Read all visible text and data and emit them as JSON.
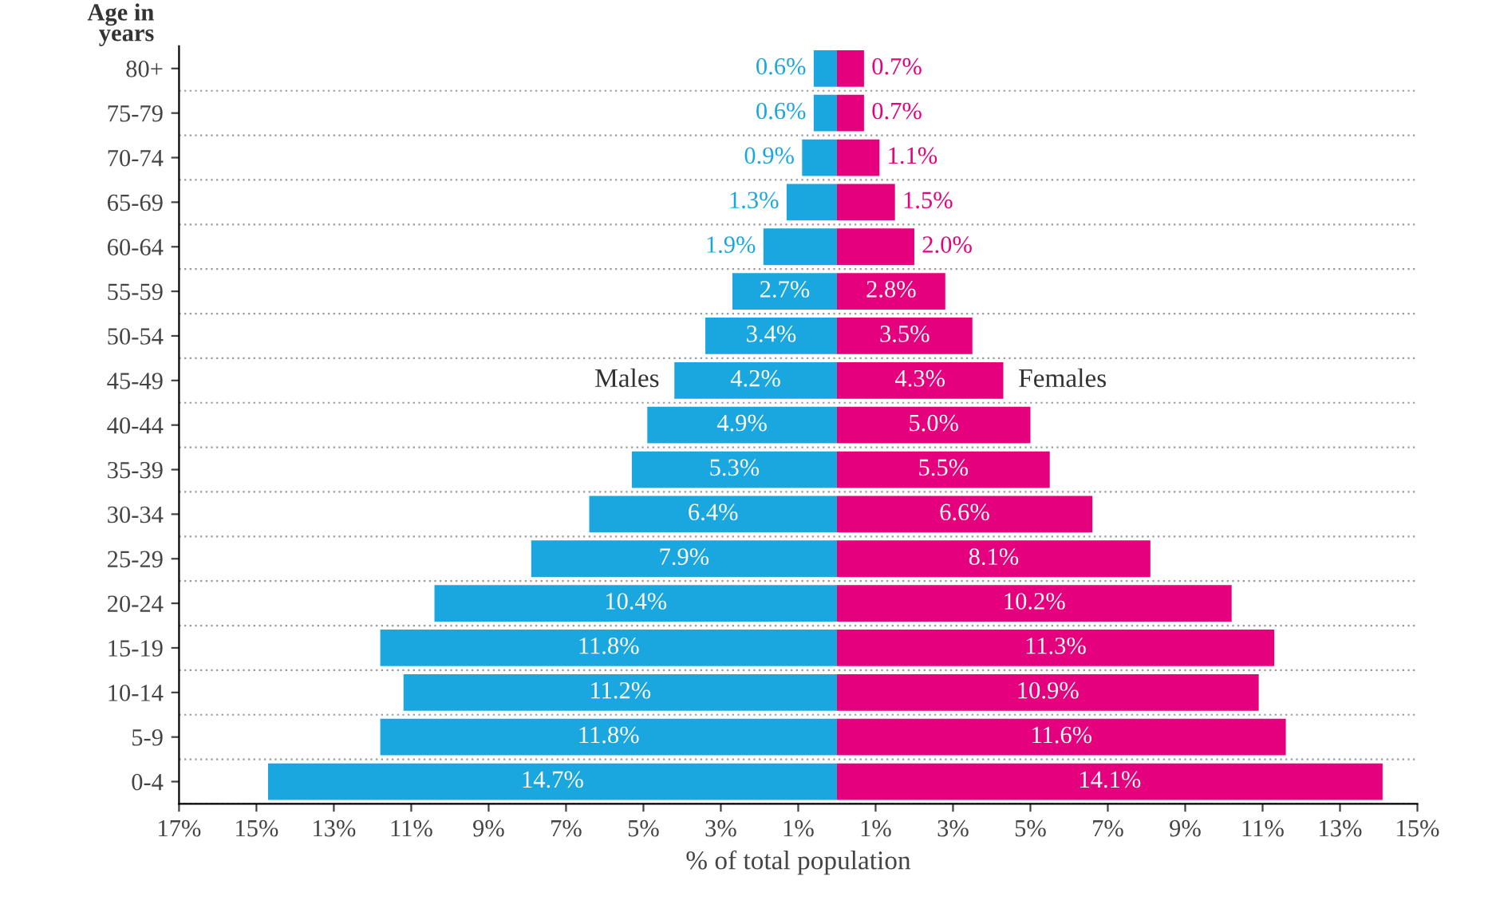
{
  "chart_data": {
    "type": "bar",
    "orientation": "horizontal",
    "ylabel": "Age in\nyears",
    "xlabel": "% of total population",
    "categories": [
      "80+",
      "75-79",
      "70-74",
      "65-69",
      "60-64",
      "55-59",
      "50-54",
      "45-49",
      "40-44",
      "35-39",
      "30-34",
      "25-29",
      "20-24",
      "15-19",
      "10-14",
      "5-9",
      "0-4"
    ],
    "series": [
      {
        "name": "Males",
        "color": "#1aa7e0",
        "values": [
          0.6,
          0.6,
          0.9,
          1.3,
          1.9,
          2.7,
          3.4,
          4.2,
          4.9,
          5.3,
          6.4,
          7.9,
          10.4,
          11.8,
          11.2,
          11.8,
          14.7
        ],
        "base": [
          -0.6,
          -0.6,
          -0.9,
          -1.3,
          -1.9,
          -2.7,
          -3.4,
          -4.2,
          -4.9,
          -5.3,
          -6.4,
          -7.9,
          -10.4,
          -11.8,
          -11.2,
          -11.8,
          -14.7
        ],
        "value_labels": [
          "0.6%",
          "0.6%",
          "0.9%",
          "1.3%",
          "1.9%",
          "2.7%",
          "3.4%",
          "4.2%",
          "4.9%",
          "5.3%",
          "6.4%",
          "7.9%",
          "10.4%",
          "11.8%",
          "11.2%",
          "11.8%",
          "14.7%"
        ]
      },
      {
        "name": "Females",
        "color": "#e5007d",
        "values": [
          0.7,
          0.7,
          1.1,
          1.5,
          2.0,
          2.8,
          3.5,
          4.3,
          5.0,
          5.5,
          6.6,
          8.1,
          10.2,
          11.3,
          10.9,
          11.6,
          14.1
        ],
        "value_labels": [
          "0.7%",
          "0.7%",
          "1.1%",
          "1.5%",
          "2.0%",
          "2.8%",
          "3.5%",
          "4.3%",
          "5.0%",
          "5.5%",
          "6.6%",
          "8.1%",
          "10.2%",
          "11.3%",
          "10.9%",
          "11.6%",
          "14.1%"
        ]
      }
    ],
    "xlim": [
      -17,
      15
    ],
    "xticks": [
      {
        "value": -17,
        "label": "17%"
      },
      {
        "value": -15,
        "label": "15%"
      },
      {
        "value": -13,
        "label": "13%"
      },
      {
        "value": -11,
        "label": "11%"
      },
      {
        "value": -9,
        "label": "9%"
      },
      {
        "value": -7,
        "label": "7%"
      },
      {
        "value": -5,
        "label": "5%"
      },
      {
        "value": -3,
        "label": "3%"
      },
      {
        "value": -1,
        "label": "1%"
      },
      {
        "value": 1,
        "label": "1%"
      },
      {
        "value": 3,
        "label": "3%"
      },
      {
        "value": 5,
        "label": "5%"
      },
      {
        "value": 7,
        "label": "7%"
      },
      {
        "value": 9,
        "label": "9%"
      },
      {
        "value": 11,
        "label": "11%"
      },
      {
        "value": 13,
        "label": "13%"
      },
      {
        "value": 15,
        "label": "15%"
      }
    ],
    "grid": "y"
  }
}
